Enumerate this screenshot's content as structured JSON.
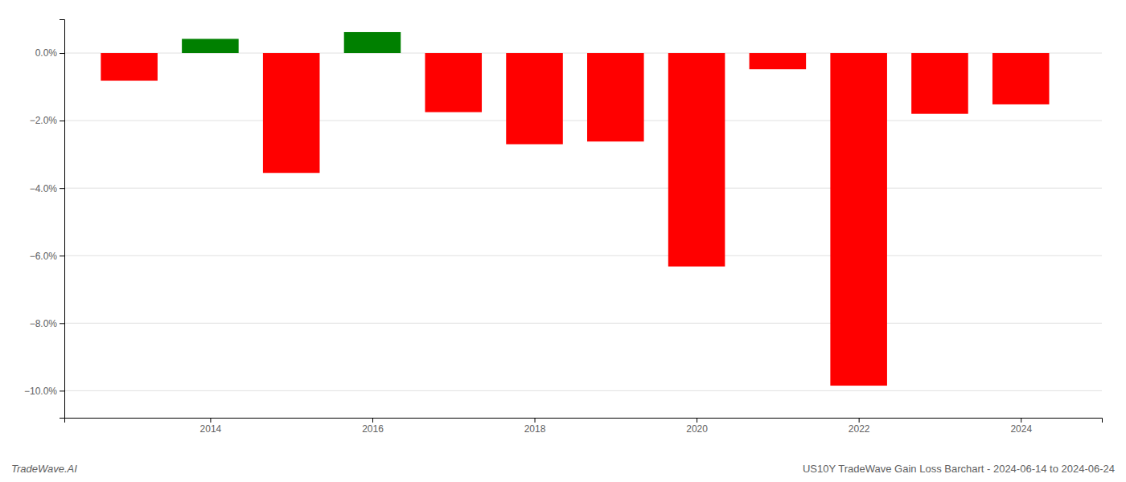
{
  "chart_data": {
    "type": "bar",
    "x": [
      2013,
      2014,
      2015,
      2016,
      2017,
      2018,
      2019,
      2020,
      2021,
      2022,
      2023,
      2024
    ],
    "values": [
      -0.82,
      0.42,
      -3.55,
      0.62,
      -1.75,
      -2.7,
      -2.62,
      -6.32,
      -0.48,
      -9.85,
      -1.8,
      -1.52
    ],
    "colors": [
      "#ff0000",
      "#008000",
      "#ff0000",
      "#008000",
      "#ff0000",
      "#ff0000",
      "#ff0000",
      "#ff0000",
      "#ff0000",
      "#ff0000",
      "#ff0000",
      "#ff0000"
    ],
    "xlim": [
      2012.2,
      2025.0
    ],
    "xticks": [
      2014,
      2016,
      2018,
      2020,
      2022,
      2024
    ],
    "ylim": [
      -10.8,
      1.0
    ],
    "yticks": [
      {
        "value": 0.0,
        "label": "0.0%"
      },
      {
        "value": -2.0,
        "label": "−2.0%"
      },
      {
        "value": -4.0,
        "label": "−4.0%"
      },
      {
        "value": -6.0,
        "label": "−6.0%"
      },
      {
        "value": -8.0,
        "label": "−8.0%"
      },
      {
        "value": -10.0,
        "label": "−10.0%"
      }
    ],
    "grid": true,
    "annotations": [
      "TradeWave.AI",
      "US10Y TradeWave Gain Loss Barchart - 2024-06-14 to 2024-06-24"
    ]
  }
}
